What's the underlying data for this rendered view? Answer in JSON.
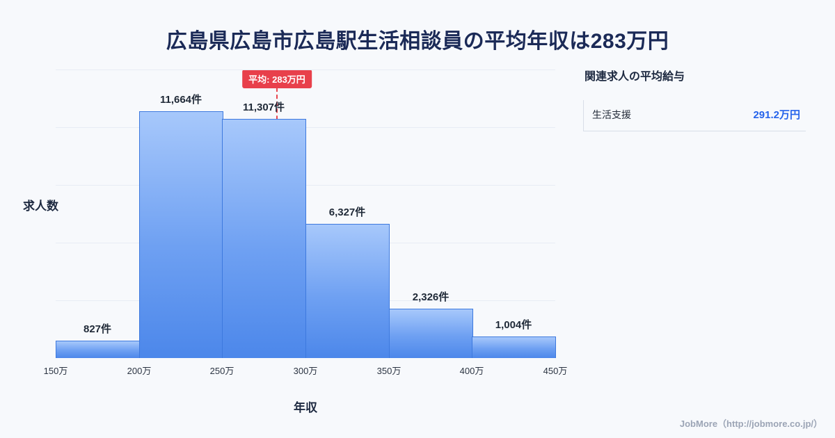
{
  "page": {
    "title": "広島県広島市広島駅生活相談員の平均年収は283万円",
    "footer": "JobMore（http://jobmore.co.jp/）"
  },
  "chart_data": {
    "type": "bar",
    "title": "広島県広島市広島駅生活相談員の平均年収は283万円",
    "xlabel": "年収",
    "ylabel": "求人数",
    "x_ticks": [
      "150万",
      "200万",
      "250万",
      "300万",
      "350万",
      "400万",
      "450万"
    ],
    "bin_edges_man_yen": [
      150,
      200,
      250,
      300,
      350,
      400,
      450
    ],
    "values": [
      827,
      11664,
      11307,
      6327,
      2326,
      1004
    ],
    "labels": [
      "827件",
      "11,664件",
      "11,307件",
      "6,327件",
      "2,326件",
      "1,004件"
    ],
    "ylim": [
      0,
      12000
    ],
    "grid": "horizontal",
    "average": {
      "value": 283,
      "label": "平均: 283万円",
      "axis_min": 150,
      "axis_max": 450
    },
    "colors": {
      "bar_top": "#a7c8fb",
      "bar_bottom": "#4c87ea",
      "bar_border": "#3d79de",
      "avg_line": "#e8454f",
      "avg_badge_bg": "#e8404b"
    }
  },
  "side_panel": {
    "title": "関連求人の平均給与",
    "rows": [
      {
        "label": "生活支援",
        "value": "291.2万円"
      }
    ],
    "value_color": "#2563eb"
  }
}
